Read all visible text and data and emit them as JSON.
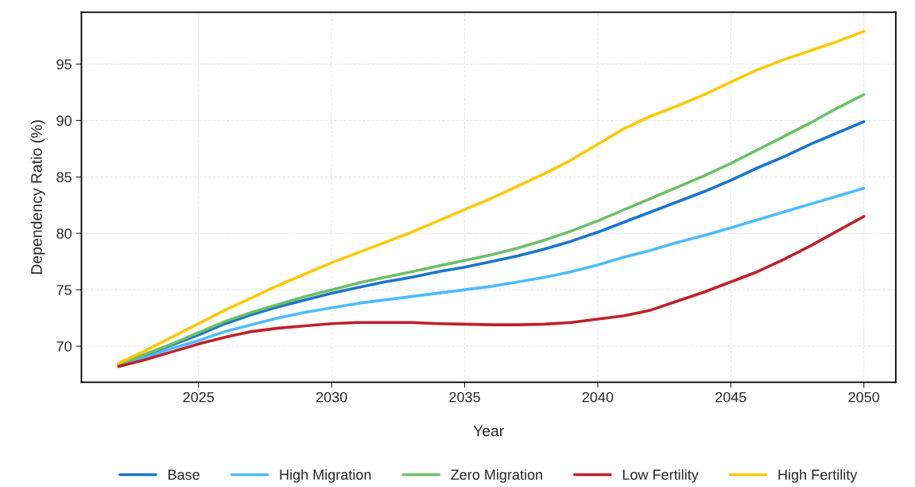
{
  "chart_data": {
    "type": "line",
    "xlabel": "Year",
    "ylabel": "Dependency Ratio (%)",
    "x": [
      2022,
      2023,
      2024,
      2025,
      2026,
      2027,
      2028,
      2029,
      2030,
      2031,
      2032,
      2033,
      2034,
      2035,
      2036,
      2037,
      2038,
      2039,
      2040,
      2041,
      2042,
      2043,
      2044,
      2045,
      2046,
      2047,
      2048,
      2049,
      2050
    ],
    "series": [
      {
        "name": "Base",
        "color": "#1a75cf",
        "values": [
          68.3,
          69.2,
          70.1,
          71.0,
          72.0,
          72.8,
          73.5,
          74.1,
          74.7,
          75.2,
          75.7,
          76.1,
          76.6,
          77.0,
          77.5,
          78.0,
          78.6,
          79.3,
          80.1,
          81.0,
          81.9,
          82.8,
          83.7,
          84.7,
          85.8,
          86.8,
          87.9,
          88.9,
          89.9
        ]
      },
      {
        "name": "High Migration",
        "color": "#4dbcff",
        "values": [
          68.3,
          69.0,
          69.8,
          70.5,
          71.3,
          71.9,
          72.5,
          73.0,
          73.4,
          73.8,
          74.1,
          74.4,
          74.7,
          75.0,
          75.3,
          75.7,
          76.1,
          76.6,
          77.2,
          77.9,
          78.5,
          79.2,
          79.8,
          80.5,
          81.2,
          81.9,
          82.6,
          83.3,
          84.0
        ]
      },
      {
        "name": "Zero Migration",
        "color": "#6dbf67",
        "values": [
          68.4,
          69.3,
          70.2,
          71.2,
          72.2,
          73.0,
          73.7,
          74.4,
          75.0,
          75.6,
          76.1,
          76.6,
          77.1,
          77.6,
          78.1,
          78.7,
          79.4,
          80.2,
          81.1,
          82.1,
          83.1,
          84.1,
          85.1,
          86.2,
          87.4,
          88.6,
          89.8,
          91.1,
          92.3
        ]
      },
      {
        "name": "Low Fertility",
        "color": "#c0202a",
        "values": [
          68.2,
          68.8,
          69.5,
          70.2,
          70.8,
          71.3,
          71.6,
          71.8,
          72.0,
          72.1,
          72.1,
          72.1,
          72.0,
          71.95,
          71.9,
          71.9,
          71.95,
          72.1,
          72.4,
          72.7,
          73.2,
          74.0,
          74.8,
          75.7,
          76.6,
          77.7,
          78.9,
          80.2,
          81.5
        ]
      },
      {
        "name": "High Fertility",
        "color": "#ffc800",
        "values": [
          68.5,
          69.6,
          70.8,
          72.0,
          73.2,
          74.3,
          75.4,
          76.4,
          77.4,
          78.3,
          79.2,
          80.1,
          81.1,
          82.1,
          83.1,
          84.2,
          85.3,
          86.5,
          87.9,
          89.3,
          90.4,
          91.3,
          92.3,
          93.4,
          94.5,
          95.4,
          96.2,
          97.0,
          97.9
        ]
      }
    ],
    "xlim": [
      2020.6,
      2051.2
    ],
    "ylim": [
      66.8,
      99.6
    ],
    "xticks": [
      2025,
      2030,
      2035,
      2040,
      2045,
      2050
    ],
    "yticks": [
      70,
      75,
      80,
      85,
      90,
      95
    ],
    "grid": true,
    "legend": "bottom",
    "marker": "none",
    "line_style": "solid"
  }
}
